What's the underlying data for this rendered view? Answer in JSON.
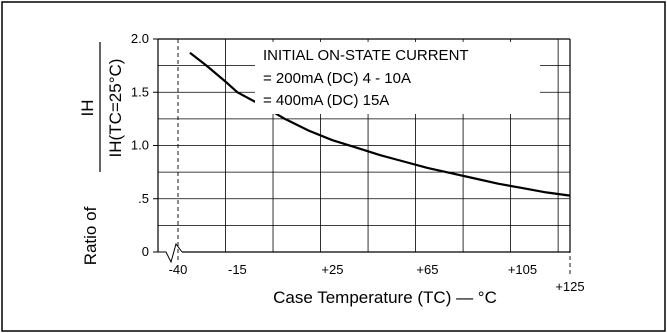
{
  "chart_data": {
    "type": "line",
    "annotation": [
      "INITIAL ON-STATE CURRENT",
      "= 200mA (DC) 4 - 10A",
      "= 400mA (DC) 15A"
    ],
    "xlabel": "Case Temperature (TC) — °C",
    "ylabel_ratio": "Ratio of",
    "ylabel_numerator": "IH",
    "ylabel_denominator": "IH(TC=25°C)",
    "x_ticks": [
      -40,
      -15,
      25,
      65,
      105,
      125
    ],
    "x_tick_labels": [
      "-40",
      "-15",
      "+25",
      "+65",
      "+105",
      "+125"
    ],
    "y_ticks": [
      0,
      0.5,
      1.0,
      1.5,
      2.0
    ],
    "y_tick_labels": [
      "0",
      ".5",
      "1.0",
      "1.5",
      "2.0"
    ],
    "xlim": [
      -40,
      125
    ],
    "ylim": [
      0,
      2.0
    ],
    "grid": true,
    "series": [
      {
        "x": [
          -35,
          -28,
          -20,
          -15,
          -5,
          5,
          15,
          25,
          35,
          45,
          55,
          65,
          75,
          85,
          95,
          105,
          115,
          125
        ],
        "y": [
          1.87,
          1.75,
          1.6,
          1.5,
          1.38,
          1.25,
          1.14,
          1.05,
          0.98,
          0.91,
          0.85,
          0.79,
          0.74,
          0.69,
          0.64,
          0.6,
          0.56,
          0.53
        ]
      }
    ]
  }
}
